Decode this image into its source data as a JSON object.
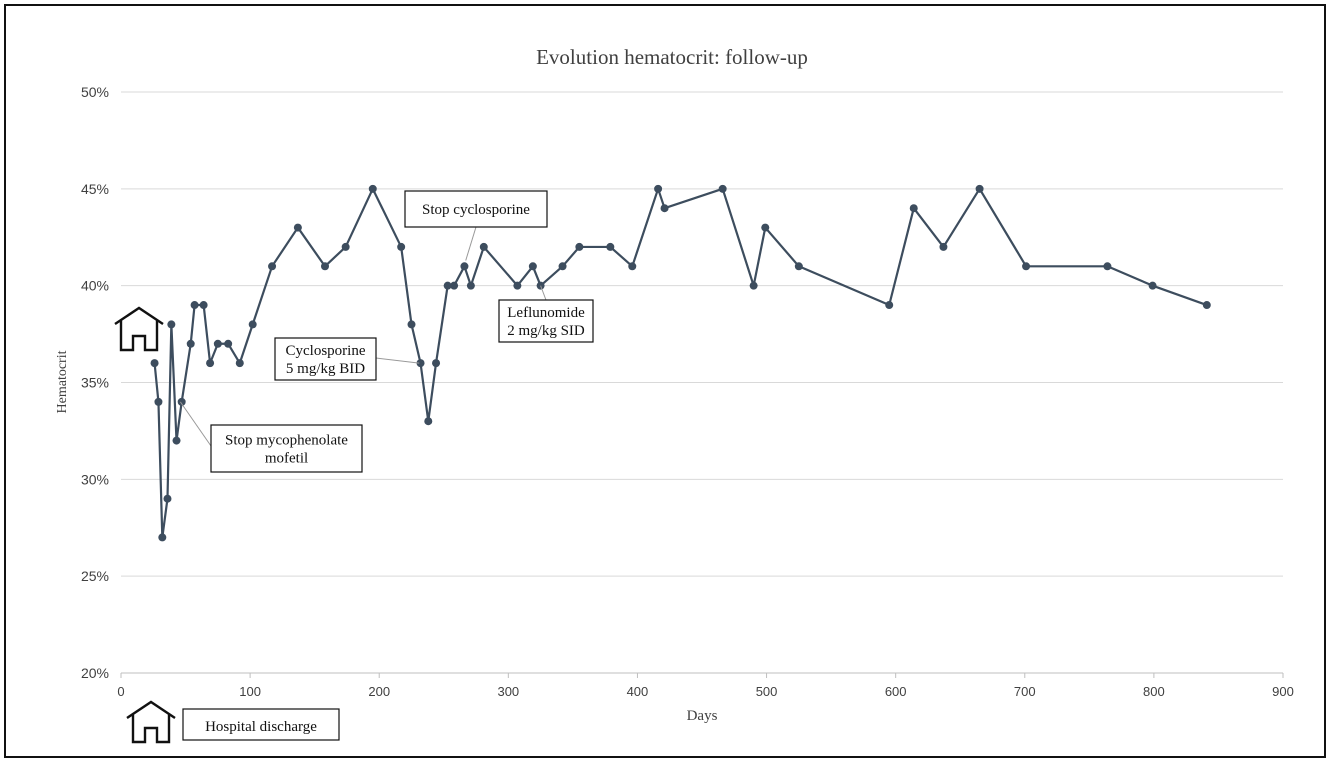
{
  "chart_data": {
    "type": "line",
    "title": "Evolution hematocrit: follow-up",
    "xlabel": "Days",
    "ylabel": "Hematocrit",
    "xlim": [
      0,
      900
    ],
    "ylim": [
      20,
      50
    ],
    "x_ticks": [
      0,
      100,
      200,
      300,
      400,
      500,
      600,
      700,
      800,
      900
    ],
    "y_ticks": [
      "20%",
      "25%",
      "30%",
      "35%",
      "40%",
      "45%",
      "50%"
    ],
    "grid": true,
    "colors": {
      "line": "#3d4d5e",
      "grid": "#d9d9d9",
      "axis": "#bfbfbf",
      "text": "#404040"
    },
    "series": [
      {
        "values": [
          [
            26,
            36
          ],
          [
            29,
            34
          ],
          [
            32,
            27
          ],
          [
            36,
            29
          ],
          [
            39,
            38
          ],
          [
            43,
            32
          ],
          [
            47,
            34
          ],
          [
            54,
            37
          ],
          [
            57,
            39
          ],
          [
            64,
            39
          ],
          [
            69,
            36
          ],
          [
            75,
            37
          ],
          [
            83,
            37
          ],
          [
            92,
            36
          ],
          [
            102,
            38
          ],
          [
            117,
            41
          ],
          [
            137,
            43
          ],
          [
            158,
            41
          ],
          [
            174,
            42
          ],
          [
            195,
            45
          ],
          [
            217,
            42
          ],
          [
            225,
            38
          ],
          [
            232,
            36
          ],
          [
            238,
            33
          ],
          [
            244,
            36
          ],
          [
            253,
            40
          ],
          [
            258,
            40
          ],
          [
            266,
            41
          ],
          [
            271,
            40
          ],
          [
            281,
            42
          ],
          [
            307,
            40
          ],
          [
            319,
            41
          ],
          [
            325,
            40
          ],
          [
            342,
            41
          ],
          [
            355,
            42
          ],
          [
            379,
            42
          ],
          [
            396,
            41
          ],
          [
            416,
            45
          ],
          [
            421,
            44
          ],
          [
            466,
            45
          ],
          [
            490,
            40
          ],
          [
            499,
            43
          ],
          [
            525,
            41
          ],
          [
            595,
            39
          ],
          [
            614,
            44
          ],
          [
            637,
            42
          ],
          [
            665,
            45
          ],
          [
            701,
            41
          ],
          [
            764,
            41
          ],
          [
            799,
            40
          ],
          [
            841,
            39
          ]
        ]
      }
    ],
    "annotations": [
      {
        "text": "Stop cyclosporine",
        "x": 267,
        "y": 41.3
      },
      {
        "text": "Leflunomide\n2 mg/kg SID",
        "x": 325,
        "y": 40
      },
      {
        "text": "Cyclosporine\n5 mg/kg BID",
        "x": 231,
        "y": 36
      },
      {
        "text": "Stop mycophenolate\nmofetil",
        "x": 46,
        "y": 34
      }
    ],
    "legend": [
      {
        "icon": "house-icon",
        "text": "Hospital discharge"
      }
    ]
  }
}
